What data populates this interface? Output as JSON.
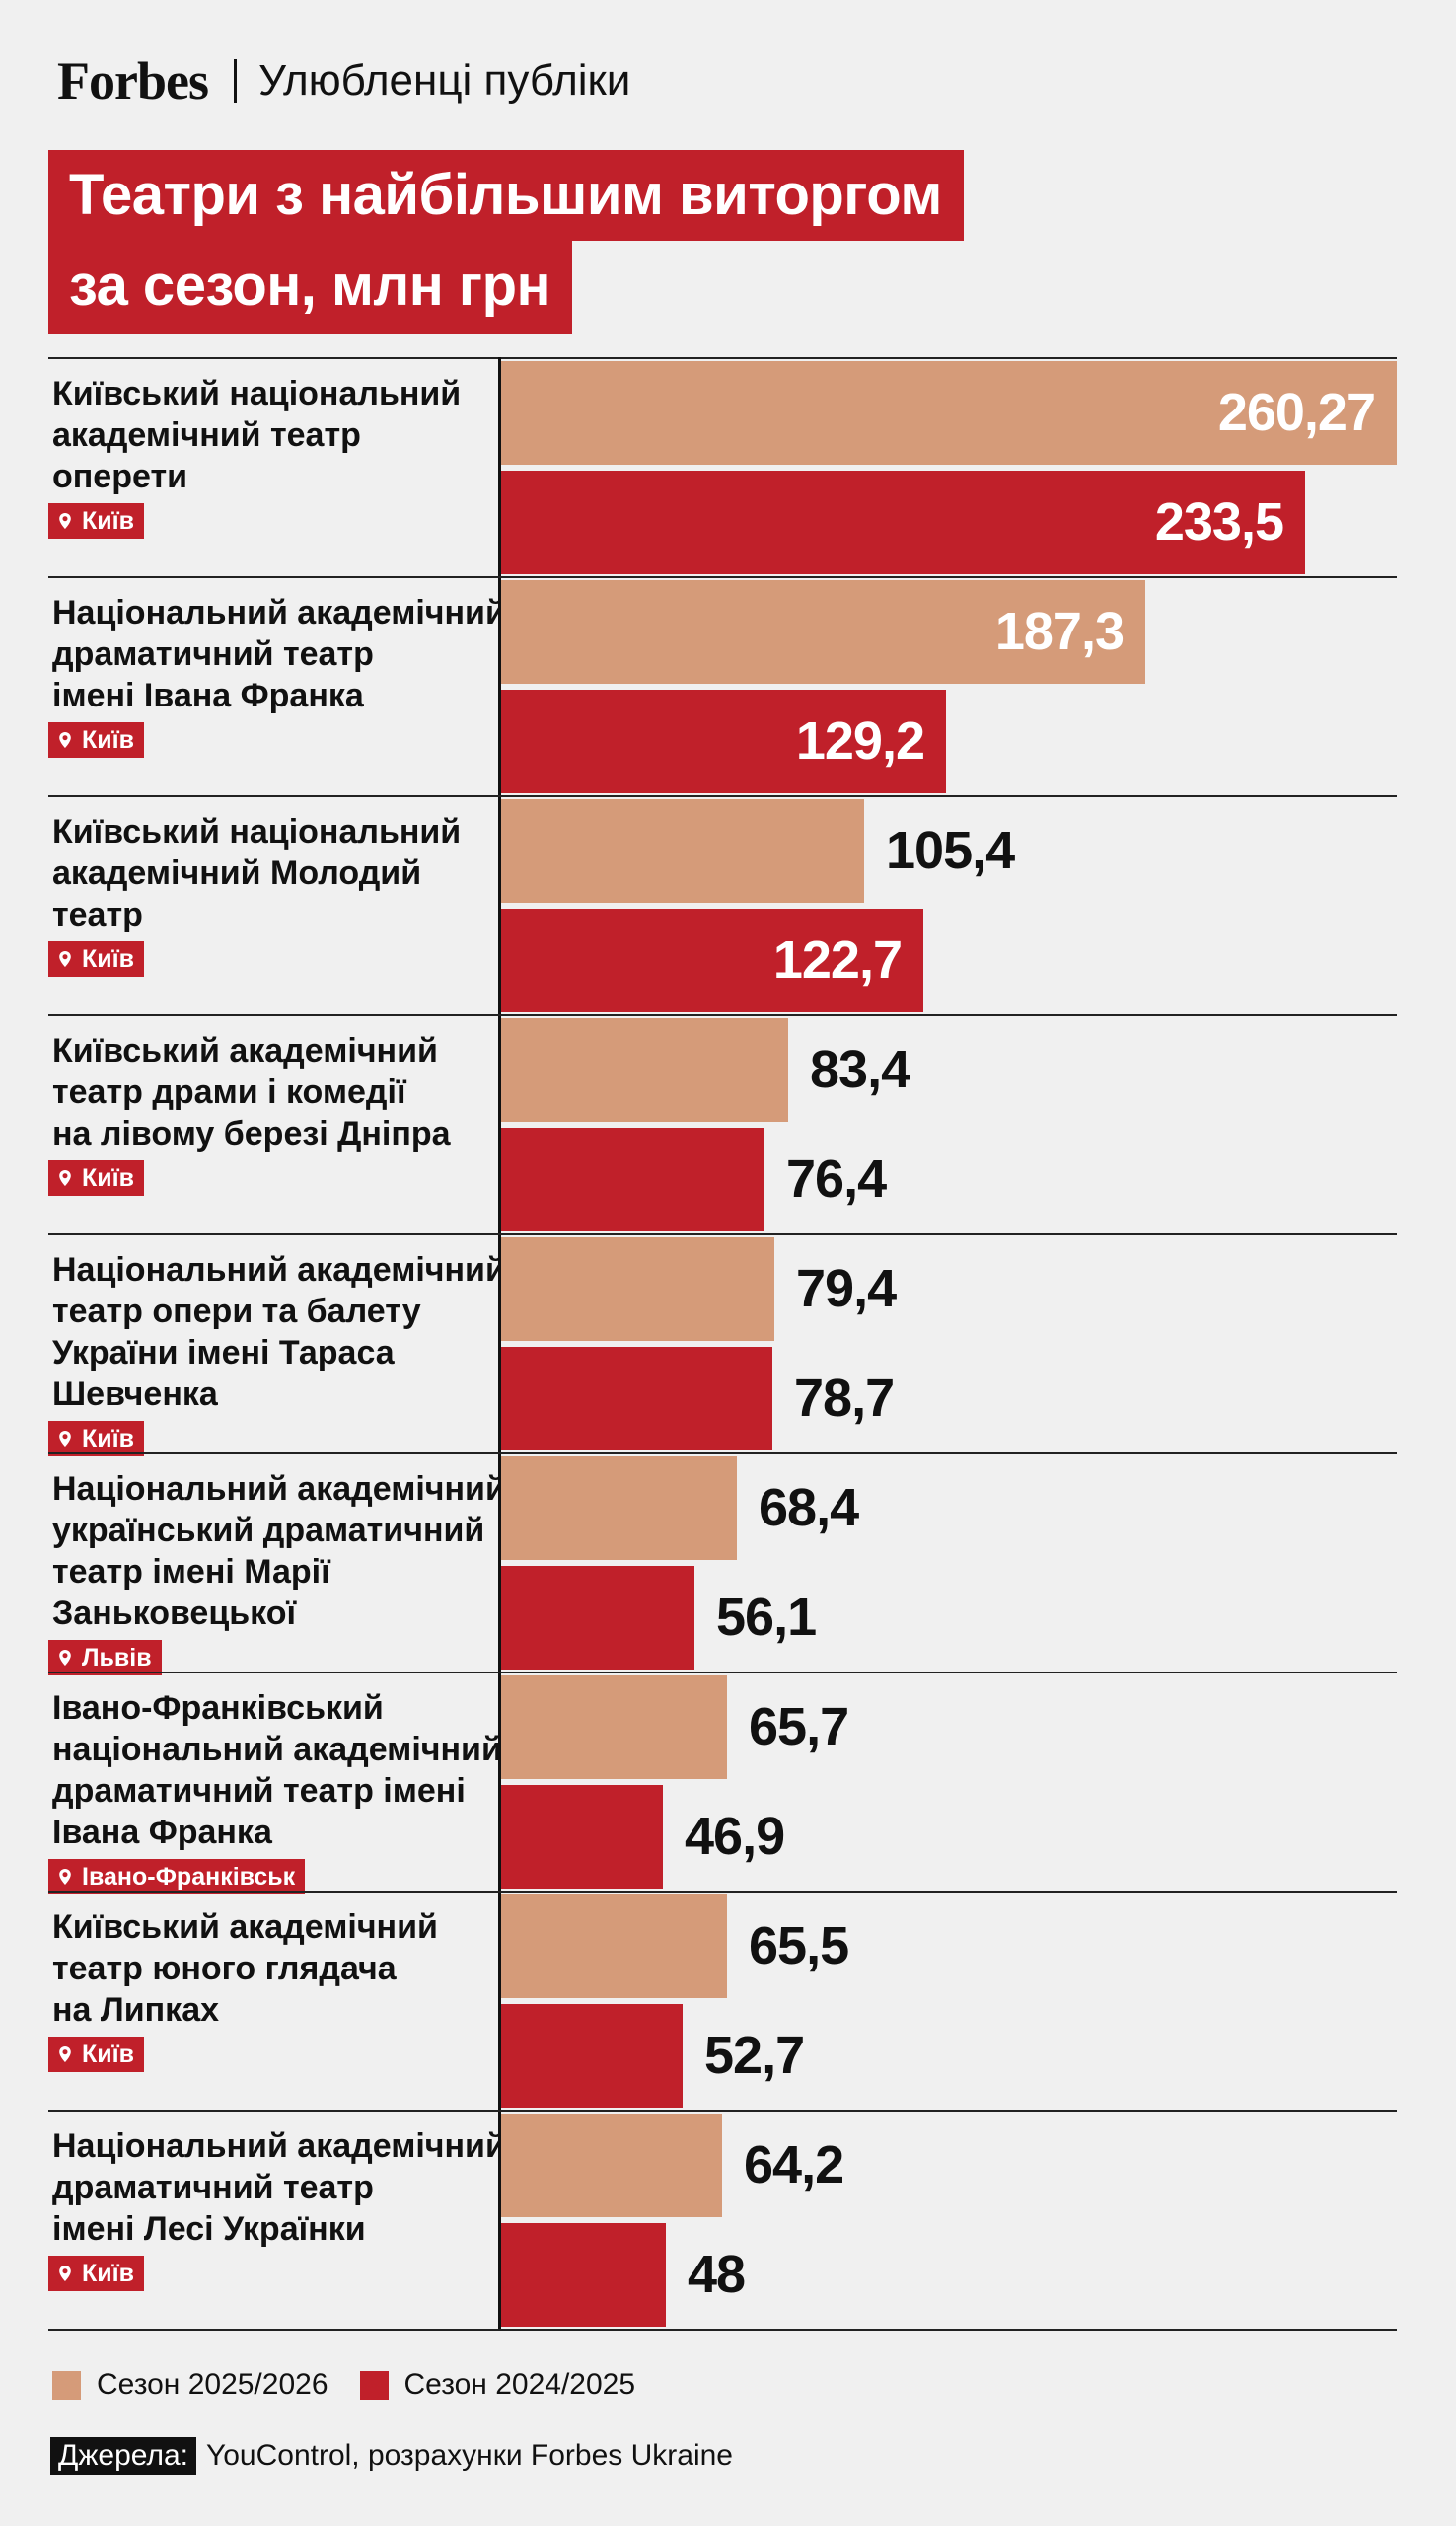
{
  "header": {
    "logo": "Forbes",
    "section": "Улюбленці публіки"
  },
  "title": {
    "line1": "Театри з найбільшим виторгом",
    "line2": "за сезон, млн грн"
  },
  "colors": {
    "current_season": "#d59b79",
    "previous_season": "#c0202a",
    "accent": "#c0202a"
  },
  "chart_data": {
    "type": "bar",
    "orientation": "horizontal",
    "title": "Театри з найбільшим виторгом за сезон, млн грн",
    "categories": [
      "Київський національний академічний театр оперети",
      "Національний академічний драматичний театр імені Івана Франка",
      "Київський національний академічний Молодий театр",
      "Київський академічний театр драми і комедії на лівому березі Дніпра",
      "Національний академічний театр опери та балету України імені Тараса Шевченка",
      "Національний академічний український драматичний театр імені Марії Заньковецької",
      "Івано-Франківський національний академічний драматичний театр імені Івана Франка",
      "Київський академічний театр юного глядача на Липках",
      "Національний академічний драматичний театр імені Лесі Українки"
    ],
    "series": [
      {
        "name": "Сезон 2025/2026",
        "values": [
          260.27,
          187.3,
          105.4,
          83.4,
          79.4,
          68.4,
          65.7,
          65.5,
          64.2
        ]
      },
      {
        "name": "Сезон 2024/2025",
        "values": [
          233.5,
          129.2,
          122.7,
          76.4,
          78.7,
          56.1,
          46.9,
          52.7,
          48
        ]
      }
    ],
    "xlim": [
      0,
      260.27
    ],
    "legend_position": "bottom-left"
  },
  "rows": [
    {
      "lines": [
        "Київський національний",
        "академічний театр",
        "оперети"
      ],
      "city": "Київ",
      "cur_label": "260,27",
      "prev_label": "233,5"
    },
    {
      "lines": [
        "Національний академічний",
        "драматичний театр",
        "імені Івана Франка"
      ],
      "city": "Київ",
      "cur_label": "187,3",
      "prev_label": "129,2"
    },
    {
      "lines": [
        "Київський національний",
        "академічний Молодий",
        "театр"
      ],
      "city": "Київ",
      "cur_label": "105,4",
      "prev_label": "122,7"
    },
    {
      "lines": [
        "Київський академічний",
        "театр драми і комедії",
        "на лівому березі Дніпра"
      ],
      "city": "Київ",
      "cur_label": "83,4",
      "prev_label": "76,4"
    },
    {
      "lines": [
        "Національний академічний",
        "театр опери та балету",
        "України імені Тараса",
        "Шевченка"
      ],
      "city": "Київ",
      "cur_label": "79,4",
      "prev_label": "78,7"
    },
    {
      "lines": [
        "Національний академічний",
        "український драматичний",
        "театр імені Марії",
        "Заньковецької"
      ],
      "city": "Львів",
      "cur_label": "68,4",
      "prev_label": "56,1"
    },
    {
      "lines": [
        "Івано-Франківський",
        "національний академічний",
        "драматичний театр імені",
        "Івана Франка"
      ],
      "city": "Івано-Франківськ",
      "cur_label": "65,7",
      "prev_label": "46,9"
    },
    {
      "lines": [
        "Київський академічний",
        "театр юного глядача",
        "на Липках"
      ],
      "city": "Київ",
      "cur_label": "65,5",
      "prev_label": "52,7"
    },
    {
      "lines": [
        "Національний академічний",
        "драматичний театр",
        "імені Лесі Українки"
      ],
      "city": "Київ",
      "cur_label": "64,2",
      "prev_label": "48"
    }
  ],
  "legend": {
    "current": "Сезон 2025/2026",
    "previous": "Сезон 2024/2025"
  },
  "source": {
    "label": "Джерела:",
    "text": "YouControl, розрахунки Forbes Ukraine"
  }
}
